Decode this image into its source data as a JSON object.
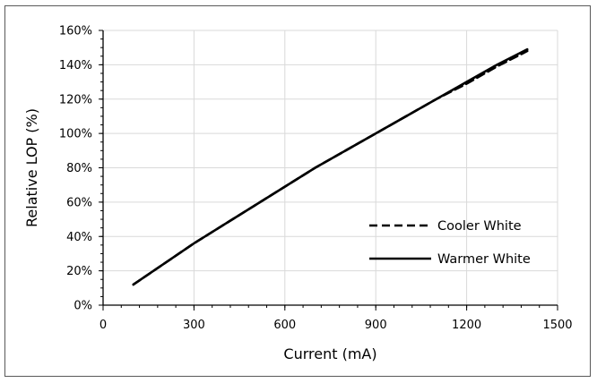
{
  "chart_data": {
    "type": "line",
    "title": "",
    "xlabel": "Current (mA)",
    "ylabel": "Relative LOP (%)",
    "xlim": [
      0,
      1500
    ],
    "ylim": [
      0,
      160
    ],
    "x_ticks": [
      0,
      300,
      600,
      900,
      1200,
      1500
    ],
    "y_ticks": [
      0,
      20,
      40,
      60,
      80,
      100,
      120,
      140,
      160
    ],
    "x_tick_labels": [
      "0",
      "300",
      "600",
      "900",
      "1200",
      "1500"
    ],
    "y_tick_labels": [
      "0%",
      "20%",
      "40%",
      "60%",
      "80%",
      "100%",
      "120%",
      "140%",
      "160%"
    ],
    "grid": true,
    "legend_position": "bottom-right",
    "series": [
      {
        "name": "Cooler White",
        "style": "dashed",
        "color": "#000000",
        "x": [
          100,
          200,
          300,
          400,
          500,
          600,
          700,
          800,
          900,
          1000,
          1100,
          1200,
          1300,
          1400
        ],
        "y": [
          12,
          24,
          36,
          47,
          58,
          69,
          80,
          90,
          100,
          110,
          120,
          129,
          139,
          148
        ]
      },
      {
        "name": "Warmer White",
        "style": "solid",
        "color": "#000000",
        "x": [
          100,
          200,
          300,
          400,
          500,
          600,
          700,
          800,
          900,
          1000,
          1100,
          1200,
          1300,
          1400
        ],
        "y": [
          12,
          24,
          36,
          47,
          58,
          69,
          80,
          90,
          100,
          110,
          120,
          130,
          140,
          149
        ]
      }
    ]
  }
}
